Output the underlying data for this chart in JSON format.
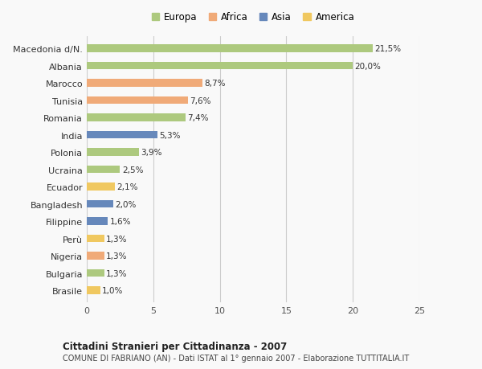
{
  "categories": [
    "Macedonia d/N.",
    "Albania",
    "Marocco",
    "Tunisia",
    "Romania",
    "India",
    "Polonia",
    "Ucraina",
    "Ecuador",
    "Bangladesh",
    "Filippine",
    "Perù",
    "Nigeria",
    "Bulgaria",
    "Brasile"
  ],
  "values": [
    21.5,
    20.0,
    8.7,
    7.6,
    7.4,
    5.3,
    3.9,
    2.5,
    2.1,
    2.0,
    1.6,
    1.3,
    1.3,
    1.3,
    1.0
  ],
  "labels": [
    "21,5%",
    "20,0%",
    "8,7%",
    "7,6%",
    "7,4%",
    "5,3%",
    "3,9%",
    "2,5%",
    "2,1%",
    "2,0%",
    "1,6%",
    "1,3%",
    "1,3%",
    "1,3%",
    "1,0%"
  ],
  "continents": [
    "Europa",
    "Europa",
    "Africa",
    "Africa",
    "Europa",
    "Asia",
    "Europa",
    "Europa",
    "America",
    "Asia",
    "Asia",
    "America",
    "Africa",
    "Europa",
    "America"
  ],
  "continent_colors": {
    "Europa": "#adc97e",
    "Africa": "#f0aa78",
    "Asia": "#6688bb",
    "America": "#f0c860"
  },
  "legend_order": [
    "Europa",
    "Africa",
    "Asia",
    "America"
  ],
  "title1": "Cittadini Stranieri per Cittadinanza - 2007",
  "title2": "COMUNE DI FABRIANO (AN) - Dati ISTAT al 1° gennaio 2007 - Elaborazione TUTTITALIA.IT",
  "xlim": [
    0,
    25
  ],
  "xticks": [
    0,
    5,
    10,
    15,
    20,
    25
  ],
  "background_color": "#f9f9f9",
  "grid_color": "#cccccc",
  "bar_height": 0.45
}
